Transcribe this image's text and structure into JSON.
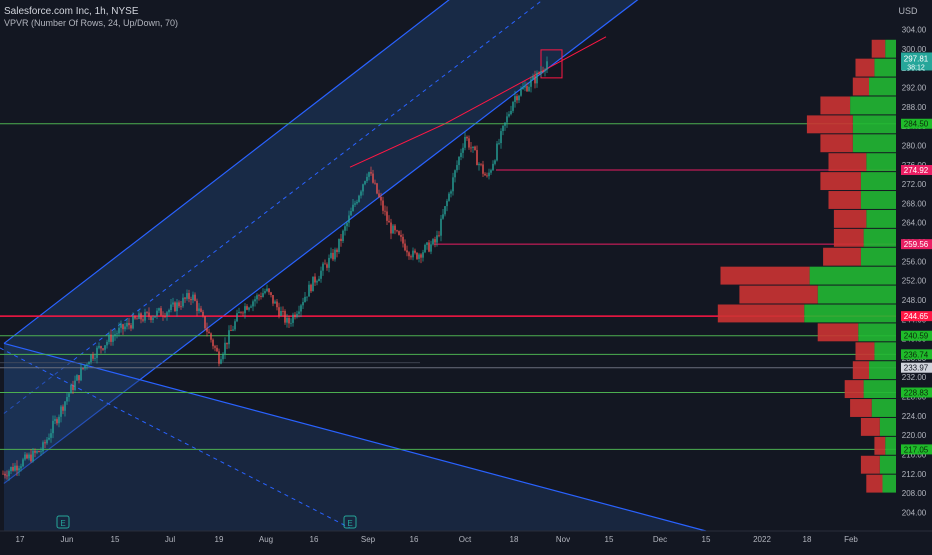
{
  "header": {
    "title": "Salesforce.com Inc, 1h, NYSE",
    "indicator": "VPVR (Number Of Rows, 24, Up/Down, 70)",
    "currency": "USD"
  },
  "colors": {
    "background": "#131722",
    "up": "#26a69a",
    "down": "#ef5350",
    "vpvr_up": "#22b833",
    "vpvr_down": "#cc3333",
    "channel": "#2962ff",
    "green_level": "#4caf50",
    "red_level": "#ff1744",
    "pink_level": "#e91e63",
    "axis_text": "#b2b5be"
  },
  "earnings_marker": "E",
  "chart_data": {
    "type": "candlestick",
    "ylim": [
      202.5,
      306
    ],
    "y_ticks": [
      204,
      208,
      212,
      216,
      220,
      224,
      228,
      232,
      236,
      240,
      244,
      248,
      252,
      256,
      260,
      264,
      268,
      272,
      276,
      280,
      284,
      288,
      292,
      296,
      300,
      304
    ],
    "x_ticks": [
      "17",
      "Jun",
      "15",
      "Jul",
      "19",
      "Aug",
      "16",
      "Sep",
      "16",
      "Oct",
      "18",
      "Nov",
      "15",
      "Dec",
      "15",
      "2022",
      "18",
      "Feb"
    ],
    "price_path": [
      [
        "17",
        212
      ],
      [
        "17",
        217
      ],
      [
        "Jun",
        228
      ],
      [
        "Jun",
        236
      ],
      [
        "15",
        241
      ],
      [
        "15",
        244
      ],
      [
        "Jul",
        246
      ],
      [
        "Jul",
        249
      ],
      [
        "19",
        236
      ],
      [
        "19",
        246
      ],
      [
        "Aug",
        250
      ],
      [
        "Aug",
        243
      ],
      [
        "16",
        252
      ],
      [
        "16",
        258
      ],
      [
        "Sep",
        275
      ],
      [
        "Sep",
        263
      ],
      [
        "16",
        257
      ],
      [
        "16",
        260
      ],
      [
        "Oct",
        282
      ],
      [
        "Oct",
        273
      ],
      [
        "18",
        290
      ],
      [
        "18",
        294
      ],
      [
        "Nov",
        297.81
      ]
    ],
    "last_price": 297.81,
    "countdown": "38:12",
    "levels": [
      {
        "price": 284.5,
        "label": "284.50",
        "kind": "green"
      },
      {
        "price": 274.92,
        "label": "274.92",
        "kind": "pink"
      },
      {
        "price": 259.56,
        "label": "259.56",
        "kind": "pink"
      },
      {
        "price": 244.65,
        "label": "244.65",
        "kind": "red"
      },
      {
        "price": 240.59,
        "label": "240.59",
        "kind": "green"
      },
      {
        "price": 236.74,
        "label": "236.74",
        "kind": "green"
      },
      {
        "price": 233.97,
        "label": "233.97",
        "kind": "white"
      },
      {
        "price": 228.83,
        "label": "228.83",
        "kind": "green"
      },
      {
        "price": 217.05,
        "label": "217.05",
        "kind": "green"
      }
    ],
    "up_channel": {
      "lower": [
        [
          "17",
          210
        ],
        [
          "Nov",
          296
        ]
      ],
      "upper": [
        [
          "17",
          239
        ],
        [
          "Nov",
          326
        ]
      ]
    },
    "down_channel": {
      "upper": [
        [
          "17",
          239
        ],
        [
          "Dec",
          192
        ]
      ],
      "lower": [
        [
          "17",
          235
        ],
        [
          "Sep",
          201
        ]
      ]
    },
    "vpvr": {
      "rows": 24,
      "price_from": 208,
      "price_to": 302,
      "up": [
        5,
        6,
        4,
        6,
        9,
        12,
        10,
        8,
        14,
        34,
        29,
        32,
        13,
        12,
        11,
        13,
        13,
        11,
        16,
        16,
        17,
        10,
        8,
        4
      ],
      "down": [
        6,
        7,
        4,
        7,
        8,
        7,
        6,
        7,
        15,
        32,
        29,
        33,
        14,
        11,
        12,
        12,
        15,
        14,
        12,
        17,
        11,
        6,
        7,
        5
      ]
    }
  }
}
